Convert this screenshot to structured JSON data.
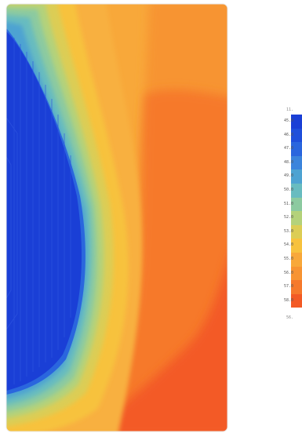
{
  "legend": {
    "top_value": "11.",
    "bottom_value": "56.",
    "levels": [
      {
        "label": "45.0",
        "color": "#1a3fd6"
      },
      {
        "label": "46.0",
        "color": "#1f4fdb"
      },
      {
        "label": "47.0",
        "color": "#2a66de"
      },
      {
        "label": "48.0",
        "color": "#3b84dc"
      },
      {
        "label": "49.0",
        "color": "#4ea3d2"
      },
      {
        "label": "50.0",
        "color": "#68bcc0"
      },
      {
        "label": "51.0",
        "color": "#8ccaa0"
      },
      {
        "label": "52.0",
        "color": "#b4d27a"
      },
      {
        "label": "53.0",
        "color": "#dccd55"
      },
      {
        "label": "54.0",
        "color": "#f7c23e"
      },
      {
        "label": "55.0",
        "color": "#f8a83a"
      },
      {
        "label": "56.0",
        "color": "#f79433"
      },
      {
        "label": "57.0",
        "color": "#f6792c"
      },
      {
        "label": "58.0",
        "color": "#f35a25"
      }
    ]
  },
  "colors": {
    "cold_core": "#1a3fd6",
    "background_field": "#f7a13a",
    "warm_field": "#f6792c",
    "hot_corner": "#f35a25"
  }
}
